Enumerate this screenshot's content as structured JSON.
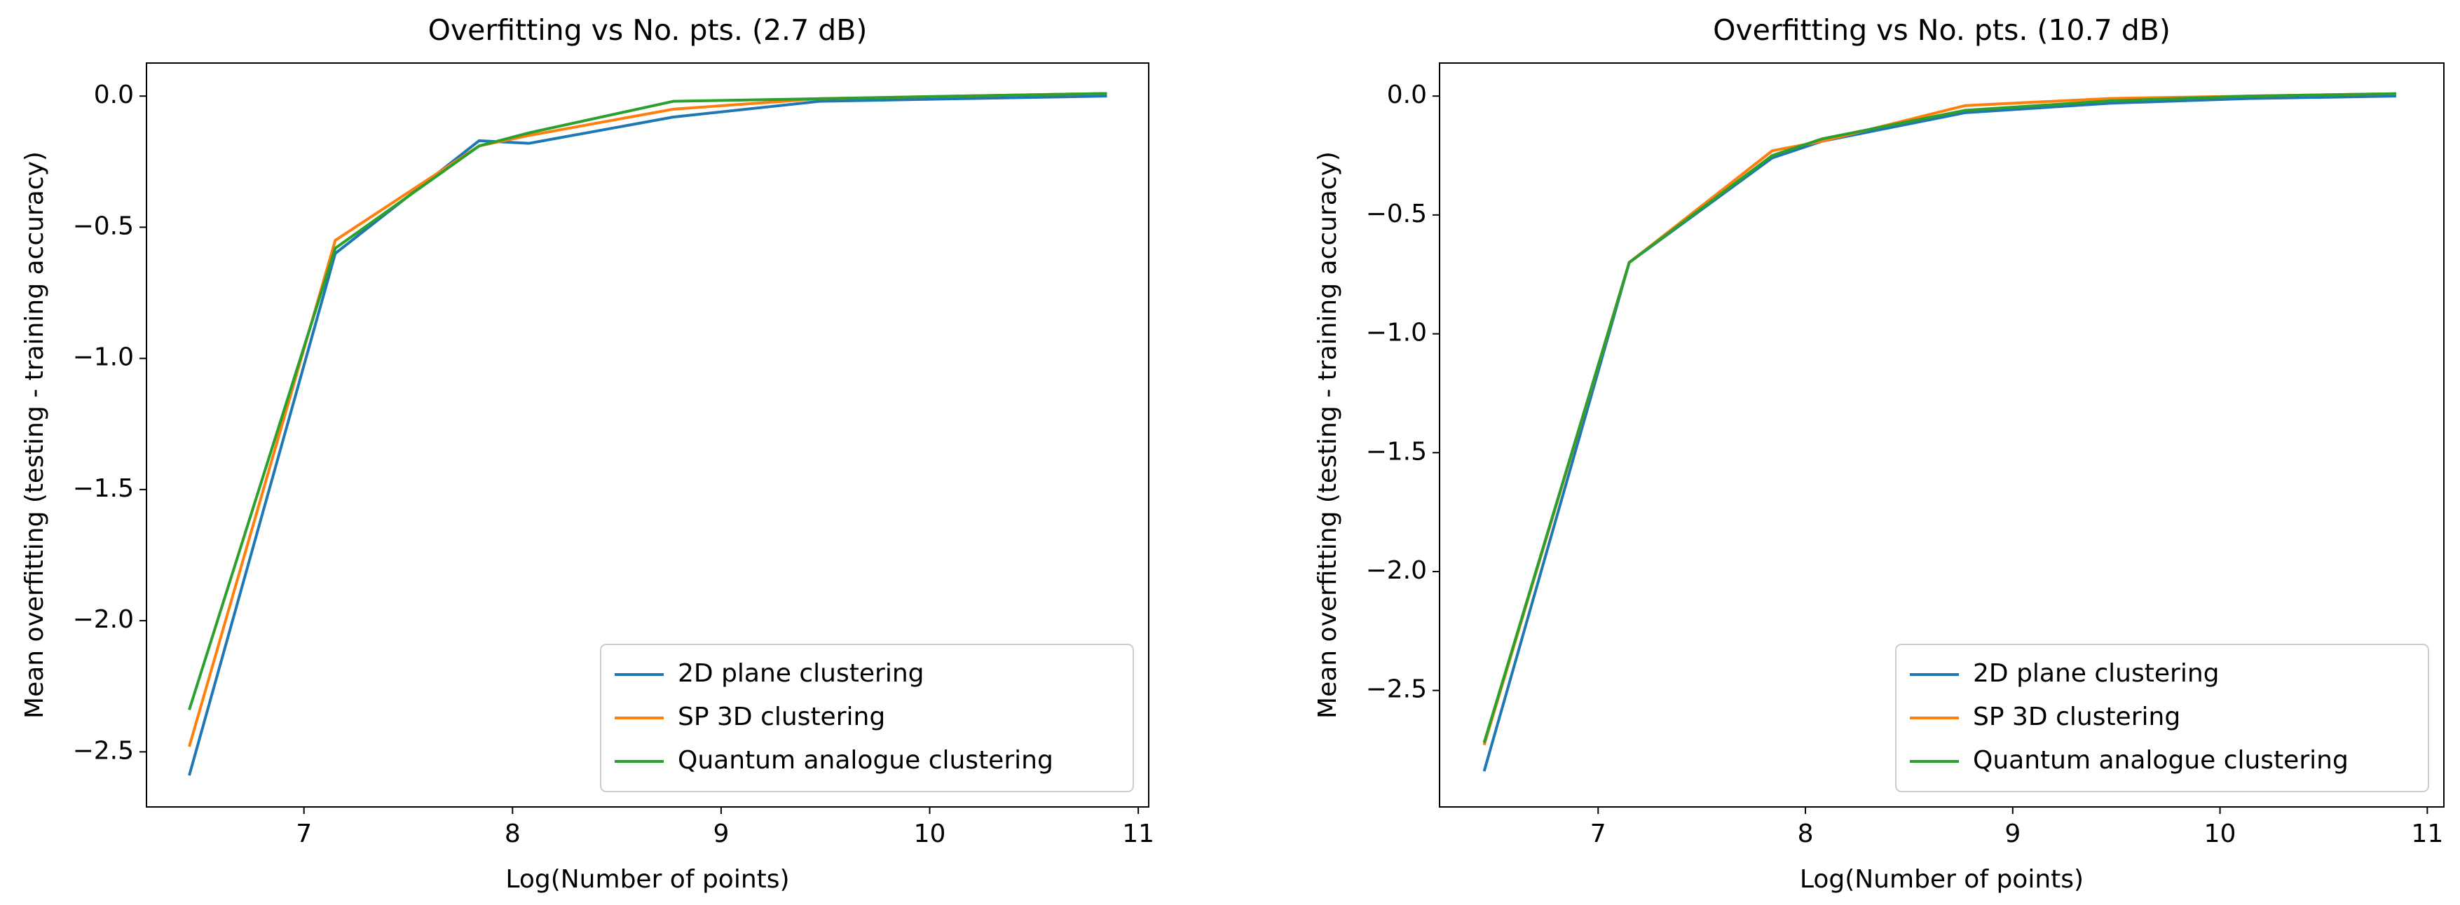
{
  "chart_data": [
    {
      "type": "line",
      "title": "Overfitting vs No. pts. (2.7 dB)",
      "x_label": "Log(Number of points)",
      "y_label": "Mean overfitting (testing - training accuracy)",
      "x": [
        6.45,
        7.15,
        7.84,
        8.08,
        8.77,
        9.47,
        10.14,
        10.85
      ],
      "series": [
        {
          "name": "2D plane clustering",
          "color": "#1f77b4",
          "values": [
            -2.59,
            -0.6,
            -0.17,
            -0.18,
            -0.08,
            -0.02,
            -0.01,
            0.0
          ]
        },
        {
          "name": "SP 3D clustering",
          "color": "#ff7f0e",
          "values": [
            -2.48,
            -0.55,
            -0.19,
            -0.15,
            -0.05,
            -0.01,
            0.0,
            0.01
          ]
        },
        {
          "name": "Quantum analogue clustering",
          "color": "#2ca02c",
          "values": [
            -2.34,
            -0.58,
            -0.19,
            -0.14,
            -0.02,
            -0.01,
            0.0,
            0.01
          ]
        }
      ],
      "xlim": [
        6.245,
        11.05
      ],
      "xticks": [
        7,
        8,
        9,
        10,
        11
      ],
      "ylim": [
        -2.71,
        0.126
      ],
      "yticks": [
        {
          "value": 0,
          "label": "0.0"
        },
        {
          "value": -0.5,
          "label": "−0.5"
        },
        {
          "value": -1,
          "label": "−1.0"
        },
        {
          "value": -1.5,
          "label": "−1.5"
        },
        {
          "value": -2,
          "label": "−2.0"
        },
        {
          "value": -2.5,
          "label": "−2.5"
        }
      ],
      "legend": "lower right"
    },
    {
      "type": "line",
      "title": "Overfitting vs No. pts. (10.7 dB)",
      "x_label": "Log(Number of points)",
      "y_label": "Mean overfitting (testing - training accuracy)",
      "x": [
        6.45,
        7.15,
        7.84,
        8.08,
        8.77,
        9.47,
        10.14,
        10.85
      ],
      "series": [
        {
          "name": "2D plane clustering",
          "color": "#1f77b4",
          "values": [
            -2.84,
            -0.7,
            -0.26,
            -0.19,
            -0.07,
            -0.03,
            -0.01,
            0.0
          ]
        },
        {
          "name": "SP 3D clustering",
          "color": "#ff7f0e",
          "values": [
            -2.73,
            -0.7,
            -0.23,
            -0.19,
            -0.04,
            -0.01,
            0.0,
            0.01
          ]
        },
        {
          "name": "Quantum analogue clustering",
          "color": "#2ca02c",
          "values": [
            -2.72,
            -0.7,
            -0.25,
            -0.18,
            -0.06,
            -0.02,
            0.0,
            0.01
          ]
        }
      ],
      "xlim": [
        6.235,
        11.08
      ],
      "xticks": [
        7,
        8,
        9,
        10,
        11
      ],
      "ylim": [
        -2.99,
        0.139
      ],
      "yticks": [
        {
          "value": 0,
          "label": "0.0"
        },
        {
          "value": -0.5,
          "label": "−0.5"
        },
        {
          "value": -1,
          "label": "−1.0"
        },
        {
          "value": -1.5,
          "label": "−1.5"
        },
        {
          "value": -2,
          "label": "−2.0"
        },
        {
          "value": -2.5,
          "label": "−2.5"
        }
      ],
      "legend": "lower right"
    }
  ]
}
